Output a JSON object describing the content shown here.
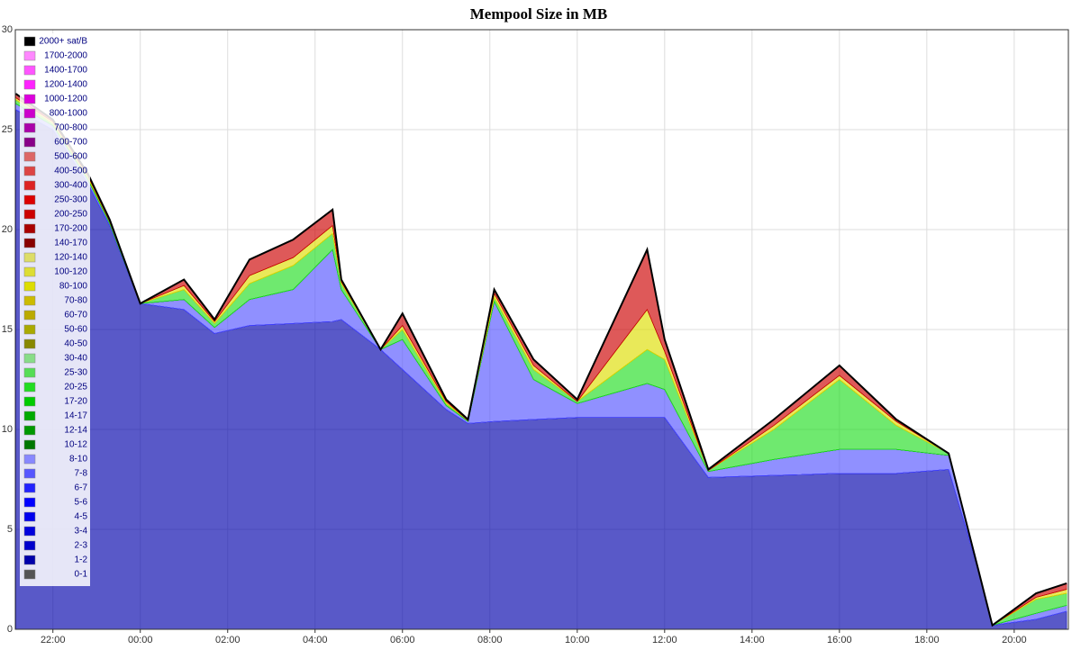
{
  "chart_data": {
    "type": "stacked-area",
    "title": "Mempool Size in MB",
    "x": [
      21.15,
      22,
      22.8,
      23.3,
      24,
      25,
      25.7,
      26.5,
      27.5,
      28.4,
      28.6,
      29.5,
      30,
      31,
      31.5,
      32.1,
      33,
      34,
      35.6,
      36,
      37,
      38.5,
      40,
      41.3,
      42.5,
      43.2,
      43.5,
      44.5,
      45.2
    ],
    "xlim": [
      21.14,
      45.24
    ],
    "xticks": [
      {
        "value": 22,
        "label": "22:00"
      },
      {
        "value": 24,
        "label": "00:00"
      },
      {
        "value": 26,
        "label": "02:00"
      },
      {
        "value": 28,
        "label": "04:00"
      },
      {
        "value": 30,
        "label": "06:00"
      },
      {
        "value": 32,
        "label": "08:00"
      },
      {
        "value": 34,
        "label": "10:00"
      },
      {
        "value": 36,
        "label": "12:00"
      },
      {
        "value": 38,
        "label": "14:00"
      },
      {
        "value": 40,
        "label": "16:00"
      },
      {
        "value": 42,
        "label": "18:00"
      },
      {
        "value": 44,
        "label": "20:00"
      }
    ],
    "ylim": [
      0,
      30
    ],
    "yticks": [
      0,
      5,
      10,
      15,
      20,
      25,
      30
    ],
    "grid": true,
    "legend": "top-left",
    "series": [
      {
        "name": "0-1",
        "color": "#555555",
        "values": [
          0,
          0,
          0,
          0,
          0,
          0,
          0,
          0,
          0,
          0,
          0,
          0,
          0,
          0,
          0,
          0,
          0,
          0,
          0,
          0,
          0,
          0,
          0,
          0,
          0,
          0,
          0,
          0,
          0
        ]
      },
      {
        "name": "1-2",
        "color": "#0000aa",
        "values": [
          26.0,
          25.0,
          22.3,
          20.2,
          16.3,
          16.0,
          14.8,
          15.2,
          15.3,
          15.4,
          15.5,
          14.0,
          13.0,
          11.0,
          10.3,
          10.4,
          10.5,
          10.6,
          10.6,
          10.6,
          7.6,
          7.7,
          7.8,
          7.8,
          8.0,
          2.8,
          0.2,
          0.5,
          0.9
        ]
      },
      {
        "name": "2-3",
        "color": "#0000cc",
        "values": [
          0,
          0,
          0,
          0,
          0,
          0,
          0,
          0,
          0,
          0,
          0,
          0,
          0,
          0,
          0,
          0,
          0,
          0,
          0,
          0,
          0,
          0,
          0,
          0,
          0,
          0,
          0,
          0,
          0
        ]
      },
      {
        "name": "3-4",
        "color": "#0000dd",
        "values": [
          0,
          0,
          0,
          0,
          0,
          0,
          0,
          0,
          0,
          0,
          0,
          0,
          0,
          0,
          0,
          0,
          0,
          0,
          0,
          0,
          0,
          0,
          0,
          0,
          0,
          0,
          0,
          0,
          0
        ]
      },
      {
        "name": "4-5",
        "color": "#0000ee",
        "values": [
          0,
          0,
          0,
          0,
          0,
          0,
          0,
          0,
          0,
          0,
          0,
          0,
          0,
          0,
          0,
          0,
          0,
          0,
          0,
          0,
          0,
          0,
          0,
          0,
          0,
          0,
          0,
          0,
          0
        ]
      },
      {
        "name": "5-6",
        "color": "#0000ff",
        "values": [
          0,
          0,
          0,
          0,
          0,
          0,
          0,
          0,
          0,
          0,
          0,
          0,
          0,
          0,
          0,
          0,
          0,
          0,
          0,
          0,
          0,
          0,
          0,
          0,
          0,
          0,
          0,
          0,
          0
        ]
      },
      {
        "name": "6-7",
        "color": "#2222ff",
        "values": [
          0,
          0,
          0,
          0,
          0,
          0,
          0,
          0,
          0,
          0,
          0,
          0,
          0,
          0,
          0,
          0,
          0,
          0,
          0,
          0,
          0,
          0,
          0,
          0,
          0,
          0,
          0,
          0,
          0
        ]
      },
      {
        "name": "7-8",
        "color": "#5555ff",
        "values": [
          0.3,
          0.2,
          0.2,
          0.1,
          0,
          0.5,
          0.3,
          1.3,
          1.7,
          3.6,
          1.5,
          0,
          1.5,
          0.2,
          0.1,
          6.0,
          2.0,
          0.7,
          1.7,
          1.4,
          0.3,
          0.8,
          1.2,
          1.2,
          0.7,
          0,
          0,
          0.3,
          0.3
        ]
      },
      {
        "name": "8-10",
        "color": "#8888ff",
        "values": [
          0,
          0,
          0,
          0,
          0,
          0,
          0,
          0,
          0,
          0,
          0,
          0,
          0,
          0,
          0,
          0,
          0,
          0,
          0,
          0,
          0,
          0,
          0,
          0,
          0,
          0,
          0,
          0,
          0
        ]
      },
      {
        "name": "10-12",
        "color": "#007700",
        "values": [
          0,
          0,
          0,
          0,
          0,
          0,
          0,
          0,
          0,
          0,
          0,
          0,
          0,
          0,
          0,
          0,
          0,
          0,
          0,
          0,
          0,
          0,
          0,
          0,
          0,
          0,
          0,
          0,
          0
        ]
      },
      {
        "name": "12-14",
        "color": "#009900",
        "values": [
          0,
          0,
          0,
          0,
          0,
          0,
          0,
          0,
          0,
          0,
          0,
          0,
          0,
          0,
          0,
          0,
          0,
          0,
          0,
          0,
          0,
          0,
          0,
          0,
          0,
          0,
          0,
          0,
          0
        ]
      },
      {
        "name": "14-17",
        "color": "#00aa00",
        "values": [
          0,
          0,
          0,
          0,
          0,
          0,
          0,
          0,
          0,
          0,
          0,
          0,
          0,
          0,
          0,
          0,
          0,
          0,
          0,
          0,
          0,
          0,
          0,
          0,
          0,
          0,
          0,
          0,
          0
        ]
      },
      {
        "name": "17-20",
        "color": "#00cc00",
        "values": [
          0,
          0,
          0,
          0,
          0,
          0,
          0,
          0,
          0,
          0,
          0,
          0,
          0,
          0,
          0,
          0,
          0,
          0,
          0,
          0,
          0,
          0,
          0,
          0,
          0,
          0,
          0,
          0,
          0
        ]
      },
      {
        "name": "20-25",
        "color": "#22dd22",
        "values": [
          0.2,
          0.1,
          0.1,
          0.1,
          0,
          0.5,
          0.2,
          0.8,
          1.2,
          0.8,
          0.3,
          0,
          0.5,
          0.1,
          0.05,
          0.2,
          0.5,
          0.1,
          1.7,
          1.5,
          0.05,
          1.5,
          3.5,
          1.2,
          0.1,
          0,
          0,
          0.7,
          0.6
        ]
      },
      {
        "name": "25-30",
        "color": "#55dd55",
        "values": [
          0,
          0,
          0,
          0,
          0,
          0,
          0,
          0,
          0,
          0,
          0,
          0,
          0,
          0,
          0,
          0,
          0,
          0,
          0,
          0,
          0,
          0,
          0,
          0,
          0,
          0,
          0,
          0,
          0
        ]
      },
      {
        "name": "30-40",
        "color": "#88dd88",
        "values": [
          0,
          0,
          0,
          0,
          0,
          0,
          0,
          0,
          0,
          0,
          0,
          0,
          0,
          0,
          0,
          0,
          0,
          0,
          0,
          0,
          0,
          0,
          0,
          0,
          0,
          0,
          0,
          0,
          0
        ]
      },
      {
        "name": "40-50",
        "color": "#888800",
        "values": [
          0,
          0,
          0,
          0,
          0,
          0,
          0,
          0,
          0,
          0,
          0,
          0,
          0,
          0,
          0,
          0,
          0,
          0,
          0,
          0,
          0,
          0,
          0,
          0,
          0,
          0,
          0,
          0,
          0
        ]
      },
      {
        "name": "50-60",
        "color": "#aaaa00",
        "values": [
          0,
          0,
          0,
          0,
          0,
          0,
          0,
          0,
          0,
          0,
          0,
          0,
          0,
          0,
          0,
          0,
          0,
          0,
          0,
          0,
          0,
          0,
          0,
          0,
          0,
          0,
          0,
          0,
          0
        ]
      },
      {
        "name": "60-70",
        "color": "#bbaa00",
        "values": [
          0,
          0,
          0,
          0,
          0,
          0,
          0,
          0,
          0,
          0,
          0,
          0,
          0,
          0,
          0,
          0,
          0,
          0,
          0,
          0,
          0,
          0,
          0,
          0,
          0,
          0,
          0,
          0,
          0
        ]
      },
      {
        "name": "70-80",
        "color": "#ccbb00",
        "values": [
          0,
          0,
          0,
          0,
          0,
          0,
          0,
          0,
          0,
          0,
          0,
          0,
          0,
          0,
          0,
          0,
          0,
          0,
          0,
          0,
          0,
          0,
          0,
          0,
          0,
          0,
          0,
          0,
          0
        ]
      },
      {
        "name": "80-100",
        "color": "#dddd00",
        "values": [
          0.1,
          0.1,
          0.1,
          0,
          0,
          0.2,
          0.1,
          0.4,
          0.4,
          0.4,
          0.1,
          0,
          0.2,
          0.1,
          0,
          0.2,
          0.2,
          0,
          2.0,
          0.4,
          0,
          0.2,
          0.2,
          0.2,
          0,
          0,
          0,
          0.1,
          0.2
        ]
      },
      {
        "name": "100-120",
        "color": "#dddd33",
        "values": [
          0,
          0,
          0,
          0,
          0,
          0,
          0,
          0,
          0,
          0,
          0,
          0,
          0,
          0,
          0,
          0,
          0,
          0,
          0,
          0,
          0,
          0,
          0,
          0,
          0,
          0,
          0,
          0,
          0
        ]
      },
      {
        "name": "120-140",
        "color": "#dddd66",
        "values": [
          0,
          0,
          0,
          0,
          0,
          0,
          0,
          0,
          0,
          0,
          0,
          0,
          0,
          0,
          0,
          0,
          0,
          0,
          0,
          0,
          0,
          0,
          0,
          0,
          0,
          0,
          0,
          0,
          0
        ]
      },
      {
        "name": "140-170",
        "color": "#880000",
        "values": [
          0,
          0,
          0,
          0,
          0,
          0,
          0,
          0,
          0,
          0,
          0,
          0,
          0,
          0,
          0,
          0,
          0,
          0,
          0,
          0,
          0,
          0,
          0,
          0,
          0,
          0,
          0,
          0,
          0
        ]
      },
      {
        "name": "170-200",
        "color": "#aa0000",
        "values": [
          0,
          0,
          0,
          0,
          0,
          0,
          0,
          0,
          0,
          0,
          0,
          0,
          0,
          0,
          0,
          0,
          0,
          0,
          0,
          0,
          0,
          0,
          0,
          0,
          0,
          0,
          0,
          0,
          0
        ]
      },
      {
        "name": "200-250",
        "color": "#cc0000",
        "values": [
          0.2,
          0.1,
          0.1,
          0.1,
          0,
          0.3,
          0.1,
          0.8,
          0.9,
          0.8,
          0.1,
          0,
          0.6,
          0.1,
          0.05,
          0.2,
          0.3,
          0.1,
          3.0,
          0.6,
          0.05,
          0.3,
          0.5,
          0.1,
          0,
          0,
          0,
          0.2,
          0.3
        ]
      },
      {
        "name": "250-300",
        "color": "#dd0000",
        "values": [
          0,
          0,
          0,
          0,
          0,
          0,
          0,
          0,
          0,
          0,
          0,
          0,
          0,
          0,
          0,
          0,
          0,
          0,
          0,
          0,
          0,
          0,
          0,
          0,
          0,
          0,
          0,
          0,
          0
        ]
      },
      {
        "name": "300-400",
        "color": "#dd2222",
        "values": [
          0,
          0,
          0,
          0,
          0,
          0,
          0,
          0,
          0,
          0,
          0,
          0,
          0,
          0,
          0,
          0,
          0,
          0,
          0,
          0,
          0,
          0,
          0,
          0,
          0,
          0,
          0,
          0,
          0
        ]
      },
      {
        "name": "400-500",
        "color": "#dd4444",
        "values": [
          0,
          0,
          0,
          0,
          0,
          0,
          0,
          0,
          0,
          0,
          0,
          0,
          0,
          0,
          0,
          0,
          0,
          0,
          0,
          0,
          0,
          0,
          0,
          0,
          0,
          0,
          0,
          0,
          0
        ]
      },
      {
        "name": "500-600",
        "color": "#dd6666",
        "values": [
          0,
          0,
          0,
          0,
          0,
          0,
          0,
          0,
          0,
          0,
          0,
          0,
          0,
          0,
          0,
          0,
          0,
          0,
          0,
          0,
          0,
          0,
          0,
          0,
          0,
          0,
          0,
          0,
          0
        ]
      },
      {
        "name": "600-700",
        "color": "#880088",
        "values": [
          0,
          0,
          0,
          0,
          0,
          0,
          0,
          0,
          0,
          0,
          0,
          0,
          0,
          0,
          0,
          0,
          0,
          0,
          0,
          0,
          0,
          0,
          0,
          0,
          0,
          0,
          0,
          0,
          0
        ]
      },
      {
        "name": "700-800",
        "color": "#aa00aa",
        "values": [
          0,
          0,
          0,
          0,
          0,
          0,
          0,
          0,
          0,
          0,
          0,
          0,
          0,
          0,
          0,
          0,
          0,
          0,
          0,
          0,
          0,
          0,
          0,
          0,
          0,
          0,
          0,
          0,
          0
        ]
      },
      {
        "name": "800-1000",
        "color": "#cc00cc",
        "values": [
          0,
          0,
          0,
          0,
          0,
          0,
          0,
          0,
          0,
          0,
          0,
          0,
          0,
          0,
          0,
          0,
          0,
          0,
          0,
          0,
          0,
          0,
          0,
          0,
          0,
          0,
          0,
          0,
          0
        ]
      },
      {
        "name": "1000-1200",
        "color": "#dd00dd",
        "values": [
          0,
          0,
          0,
          0,
          0,
          0,
          0,
          0,
          0,
          0,
          0,
          0,
          0,
          0,
          0,
          0,
          0,
          0,
          0,
          0,
          0,
          0,
          0,
          0,
          0,
          0,
          0,
          0,
          0
        ]
      },
      {
        "name": "1200-1400",
        "color": "#ff22ff",
        "values": [
          0,
          0,
          0,
          0,
          0,
          0,
          0,
          0,
          0,
          0,
          0,
          0,
          0,
          0,
          0,
          0,
          0,
          0,
          0,
          0,
          0,
          0,
          0,
          0,
          0,
          0,
          0,
          0,
          0
        ]
      },
      {
        "name": "1400-1700",
        "color": "#ff55ff",
        "values": [
          0,
          0,
          0,
          0,
          0,
          0,
          0,
          0,
          0,
          0,
          0,
          0,
          0,
          0,
          0,
          0,
          0,
          0,
          0,
          0,
          0,
          0,
          0,
          0,
          0,
          0,
          0,
          0,
          0
        ]
      },
      {
        "name": "1700-2000",
        "color": "#ff88ff",
        "values": [
          0,
          0,
          0,
          0,
          0,
          0,
          0,
          0,
          0,
          0,
          0,
          0,
          0,
          0,
          0,
          0,
          0,
          0,
          0,
          0,
          0,
          0,
          0,
          0,
          0,
          0,
          0,
          0,
          0
        ]
      },
      {
        "name": "2000+ sat/B",
        "color": "#000000",
        "values": [
          0,
          0,
          0,
          0,
          0,
          0,
          0,
          0,
          0,
          0,
          0,
          0,
          0,
          0,
          0,
          0,
          0,
          0,
          0,
          0,
          0,
          0,
          0,
          0,
          0,
          0,
          0,
          0,
          0
        ]
      }
    ]
  }
}
